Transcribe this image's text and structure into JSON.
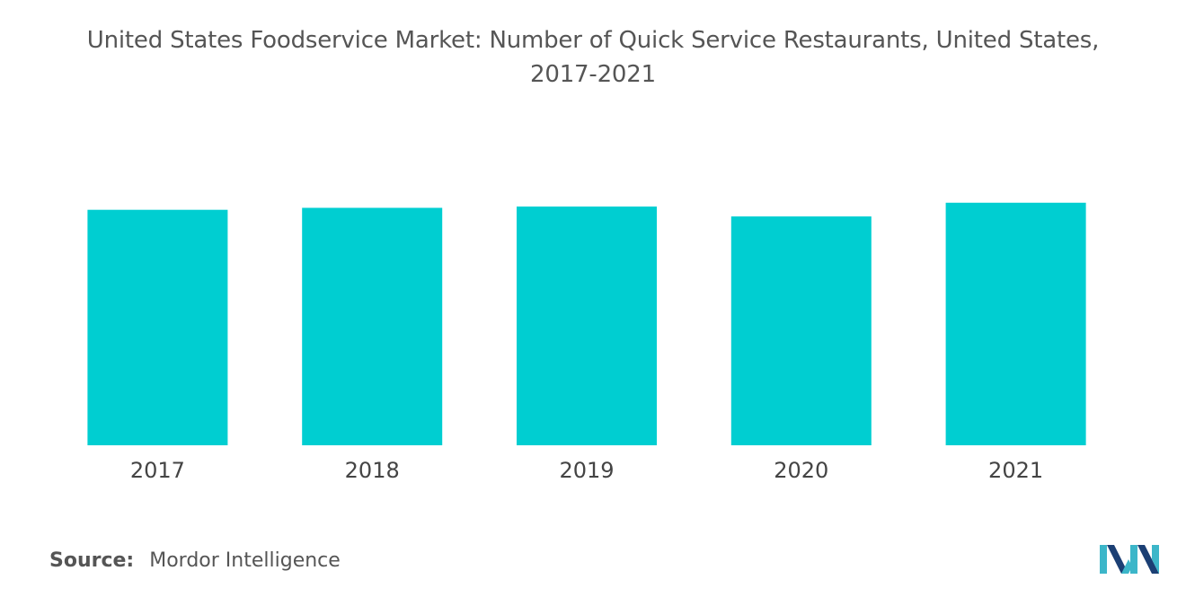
{
  "title_line1": "United States Foodservice Market: Number of Quick Service Restaurants, United States,",
  "title_line2": "2017-2021",
  "source": {
    "label": "Source:",
    "value": "Mordor Intelligence"
  },
  "logo": {
    "name": "mordor-intelligence-logo",
    "colors": [
      "#1b3f74",
      "#3cb6c9"
    ]
  },
  "colors": {
    "bar": "#00ced1",
    "axis_label": "#444444",
    "title": "#555555"
  },
  "chart_data": {
    "type": "bar",
    "categories": [
      "2017",
      "2018",
      "2019",
      "2020",
      "2021"
    ],
    "values": [
      93,
      93.8,
      94.3,
      90.4,
      95.8
    ],
    "title": "United States Foodservice Market: Number of Quick Service Restaurants, United States, 2017-2021",
    "xlabel": "",
    "ylabel": "",
    "ylim": [
      0,
      100
    ],
    "grid": false,
    "legend": "none",
    "axis_visible": false
  }
}
